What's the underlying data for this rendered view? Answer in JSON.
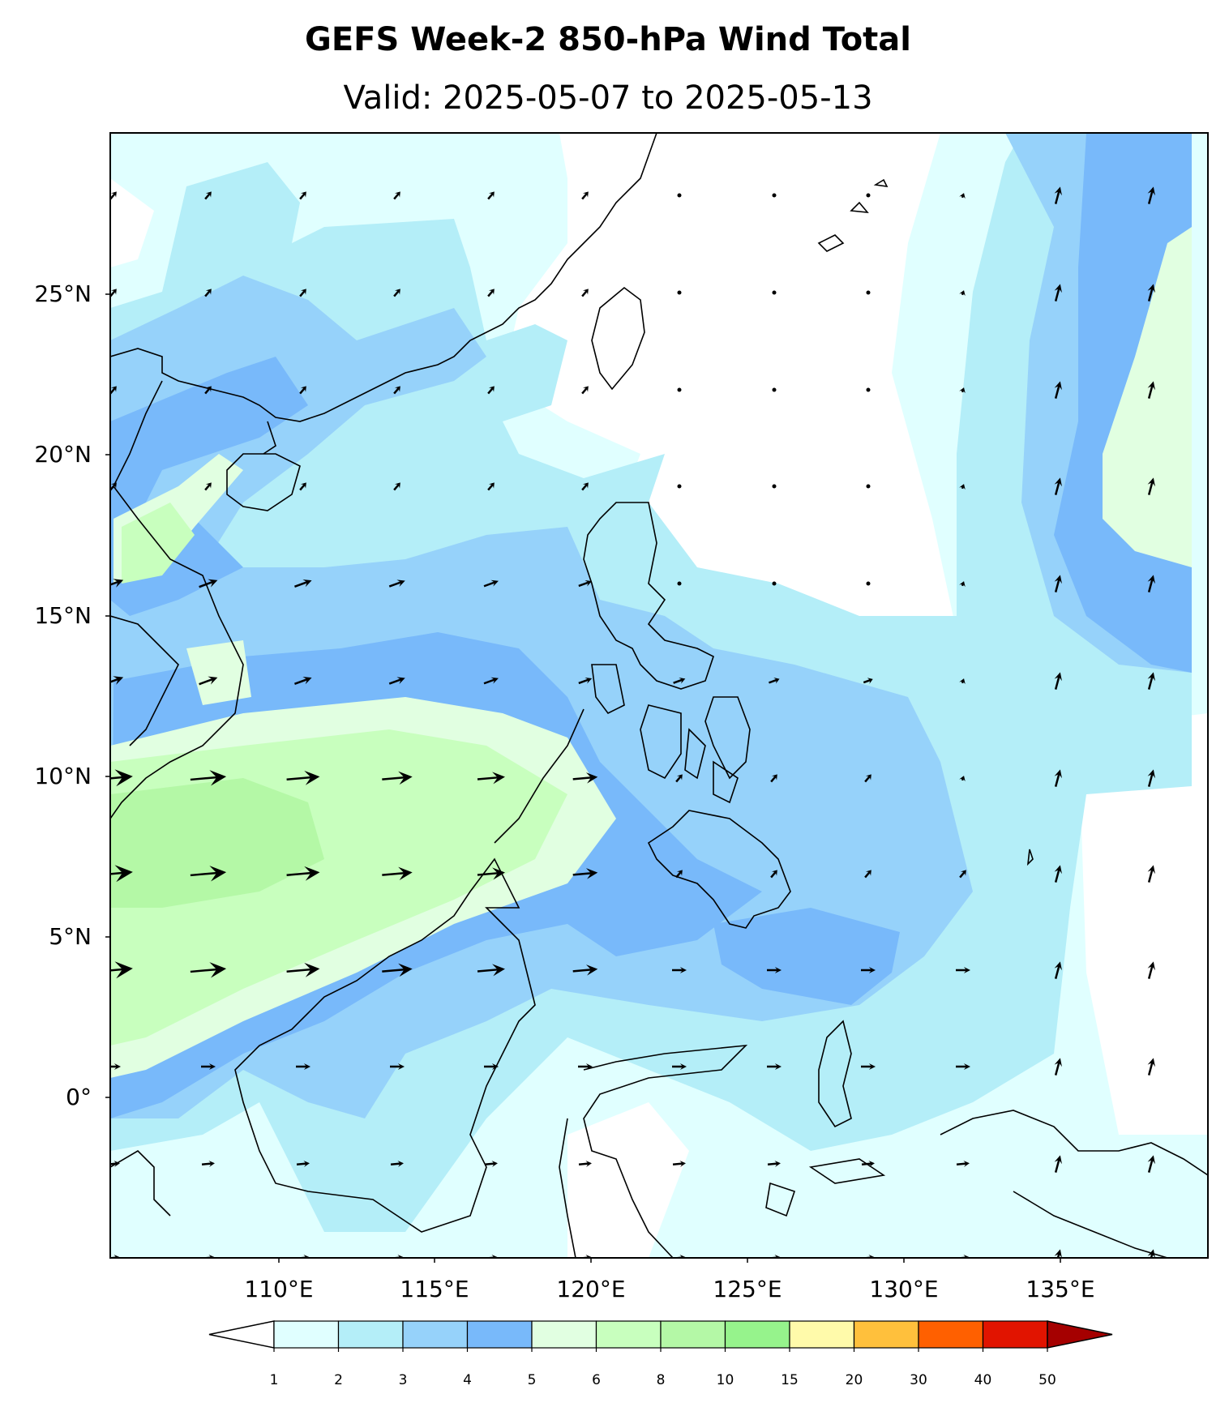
{
  "title": "GEFS Week-2 850-hPa Wind Total",
  "subtitle": "Valid: 2025-05-07 to 2025-05-13",
  "lat_labels": [
    "25°N",
    "20°N",
    "15°N",
    "10°N",
    "5°N",
    "0°"
  ],
  "lon_labels": [
    "110°E",
    "115°E",
    "120°E",
    "125°E",
    "130°E",
    "135°E"
  ],
  "colorbar": {
    "ticks": [
      "1",
      "2",
      "3",
      "4",
      "5",
      "6",
      "8",
      "10",
      "15",
      "20",
      "30",
      "40",
      "50"
    ],
    "colors": [
      "#e0ffff",
      "#b4eef8",
      "#96d2fa",
      "#78b9fa",
      "#e1ffe1",
      "#c8ffbe",
      "#b4f8a6",
      "#96f38c",
      "#fffaaa",
      "#ffc03c",
      "#ff6000",
      "#e11400",
      "#a50000"
    ]
  }
}
